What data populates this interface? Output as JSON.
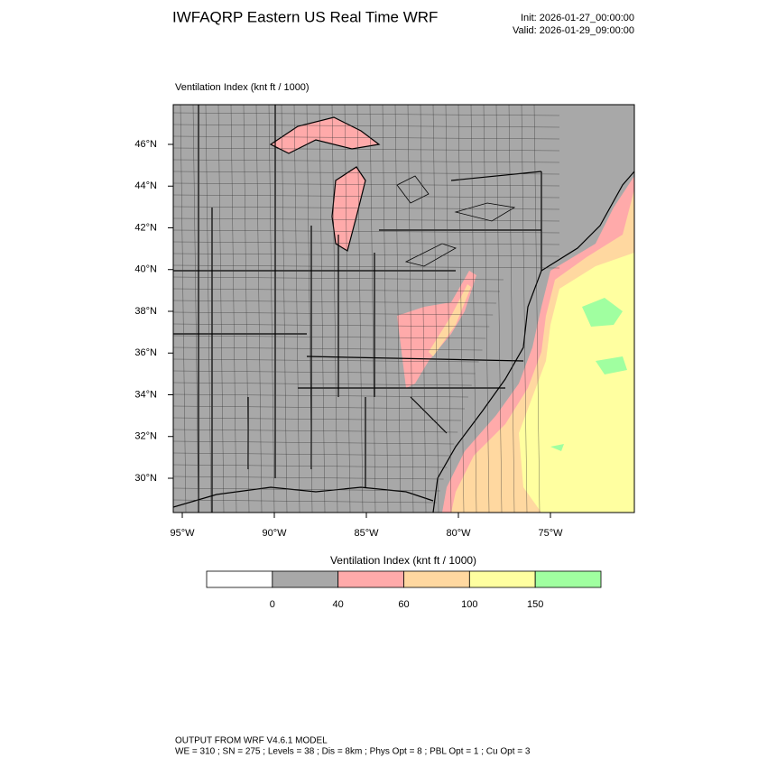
{
  "header": {
    "title": "IWFAQRP Eastern US Real Time WRF",
    "init": "Init: 2026-01-27_00:00:00",
    "valid": "Valid: 2026-01-29_09:00:00"
  },
  "map": {
    "label": "Ventilation Index   (knt ft / 1000)",
    "lat_labels": [
      "46°N",
      "44°N",
      "42°N",
      "40°N",
      "38°N",
      "36°N",
      "34°N",
      "32°N",
      "30°N"
    ],
    "lon_labels": [
      "95°W",
      "90°W",
      "85°W",
      "80°W",
      "75°W"
    ]
  },
  "colorbar": {
    "title": "Ventilation Index  (knt ft / 1000)",
    "colors": [
      "#ffffff",
      "#a8a8a8",
      "#ffaaaa",
      "#ffd8a0",
      "#ffffa0",
      "#a0ffa0"
    ],
    "ticks": [
      0,
      40,
      60,
      100,
      150
    ]
  },
  "footer": {
    "line1": "OUTPUT FROM WRF V4.6.1 MODEL",
    "line2": "WE = 310 ; SN = 275 ; Levels = 38 ; Dis = 8km ; Phys Opt = 8 ; PBL Opt = 1 ; Cu Opt = 3"
  }
}
